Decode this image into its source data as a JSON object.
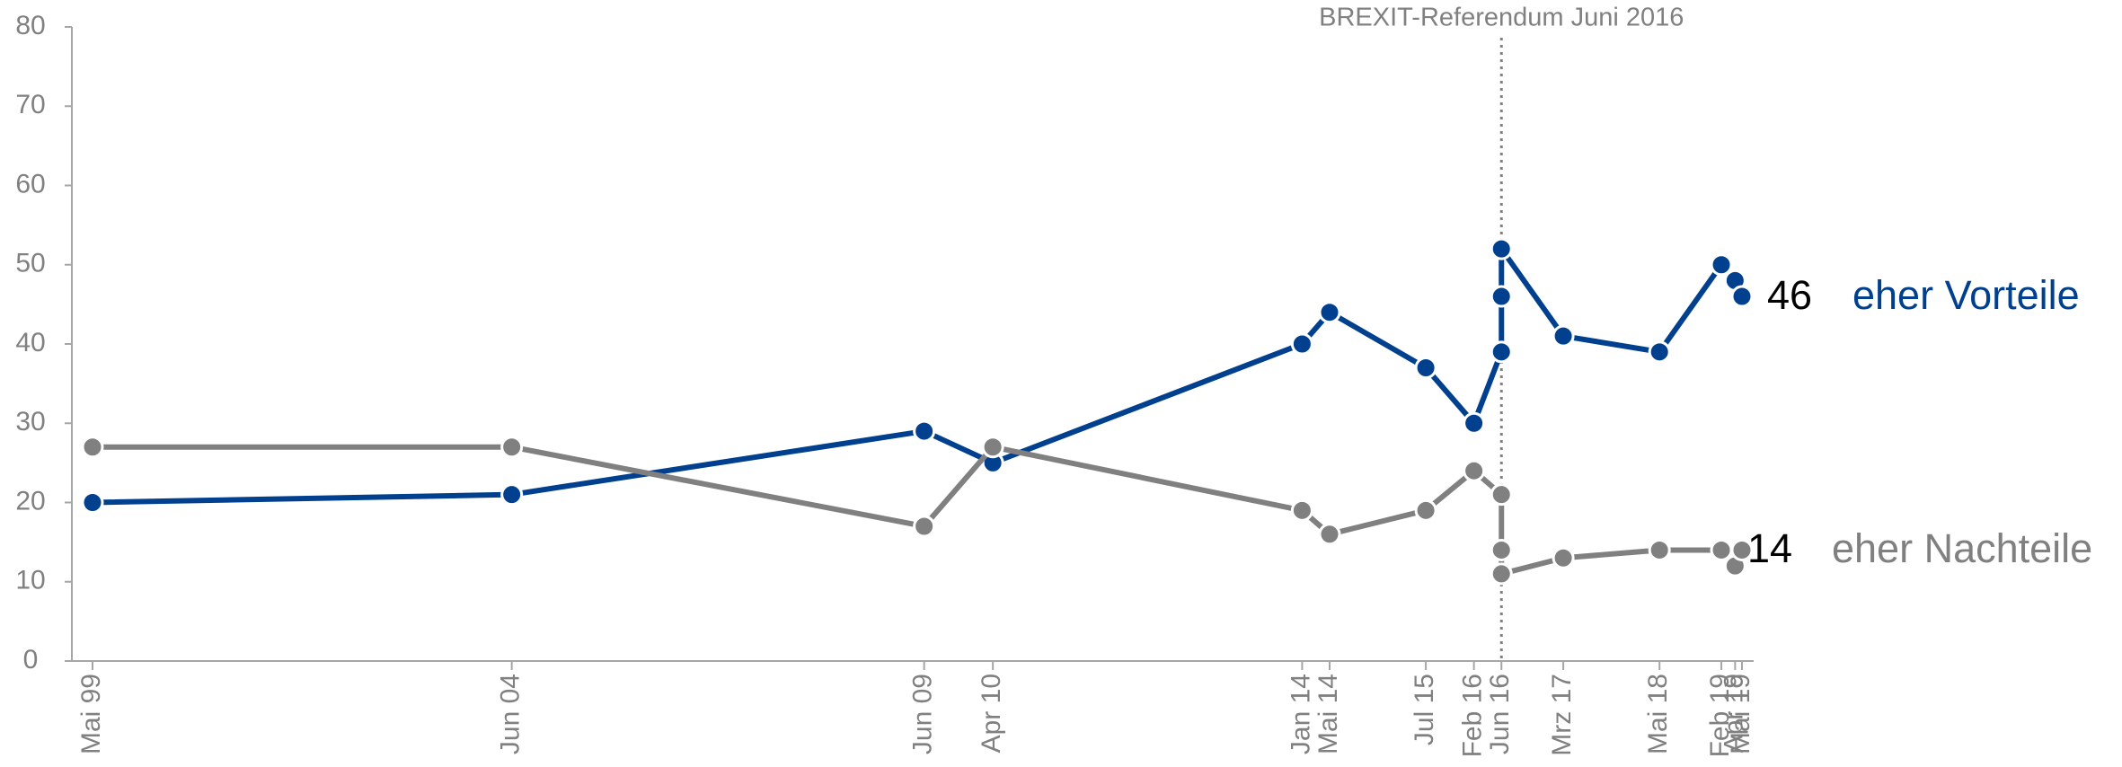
{
  "chart_data": {
    "type": "line",
    "annotations": [
      "BREXIT-Referendum Juni 2016"
    ],
    "annotation_x": "2016-06",
    "x": [
      "1999-05",
      "2004-06",
      "2009-06",
      "2010-04",
      "2014-01",
      "2014-05",
      "2015-07",
      "2016-02",
      "2016-06",
      "2016-06",
      "2016-06",
      "2017-03",
      "2018-05",
      "2019-02",
      "2019-04",
      "2019-05"
    ],
    "xticks": [
      {
        "value": "1999-05",
        "label": "Mai 99"
      },
      {
        "value": "2004-06",
        "label": "Jun 04"
      },
      {
        "value": "2009-06",
        "label": "Jun 09"
      },
      {
        "value": "2010-04",
        "label": "Apr 10"
      },
      {
        "value": "2014-01",
        "label": "Jan 14"
      },
      {
        "value": "2014-05",
        "label": "Mai 14"
      },
      {
        "value": "2015-07",
        "label": "Jul 15"
      },
      {
        "value": "2016-02",
        "label": "Feb 16"
      },
      {
        "value": "2016-06",
        "label": "Jun 16"
      },
      {
        "value": "2017-03",
        "label": "Mrz 17"
      },
      {
        "value": "2018-05",
        "label": "Mai 18"
      },
      {
        "value": "2019-02",
        "label": "Feb 19"
      },
      {
        "value": "2019-04",
        "label": "Apr 19"
      },
      {
        "value": "2019-05",
        "label": "Mai 19"
      }
    ],
    "series": [
      {
        "name": "eher Vorteile",
        "color": "#00408f",
        "values": [
          20,
          21,
          29,
          25,
          40,
          44,
          37,
          30,
          39,
          46,
          52,
          41,
          39,
          50,
          48,
          46
        ]
      },
      {
        "name": "eher Nachteile",
        "color": "#808080",
        "values": [
          27,
          27,
          17,
          27,
          19,
          16,
          19,
          24,
          21,
          14,
          11,
          13,
          14,
          14,
          12,
          14
        ]
      }
    ],
    "ylim": [
      0,
      80
    ],
    "yticks": [
      0,
      10,
      20,
      30,
      40,
      50,
      60,
      70,
      80
    ]
  }
}
